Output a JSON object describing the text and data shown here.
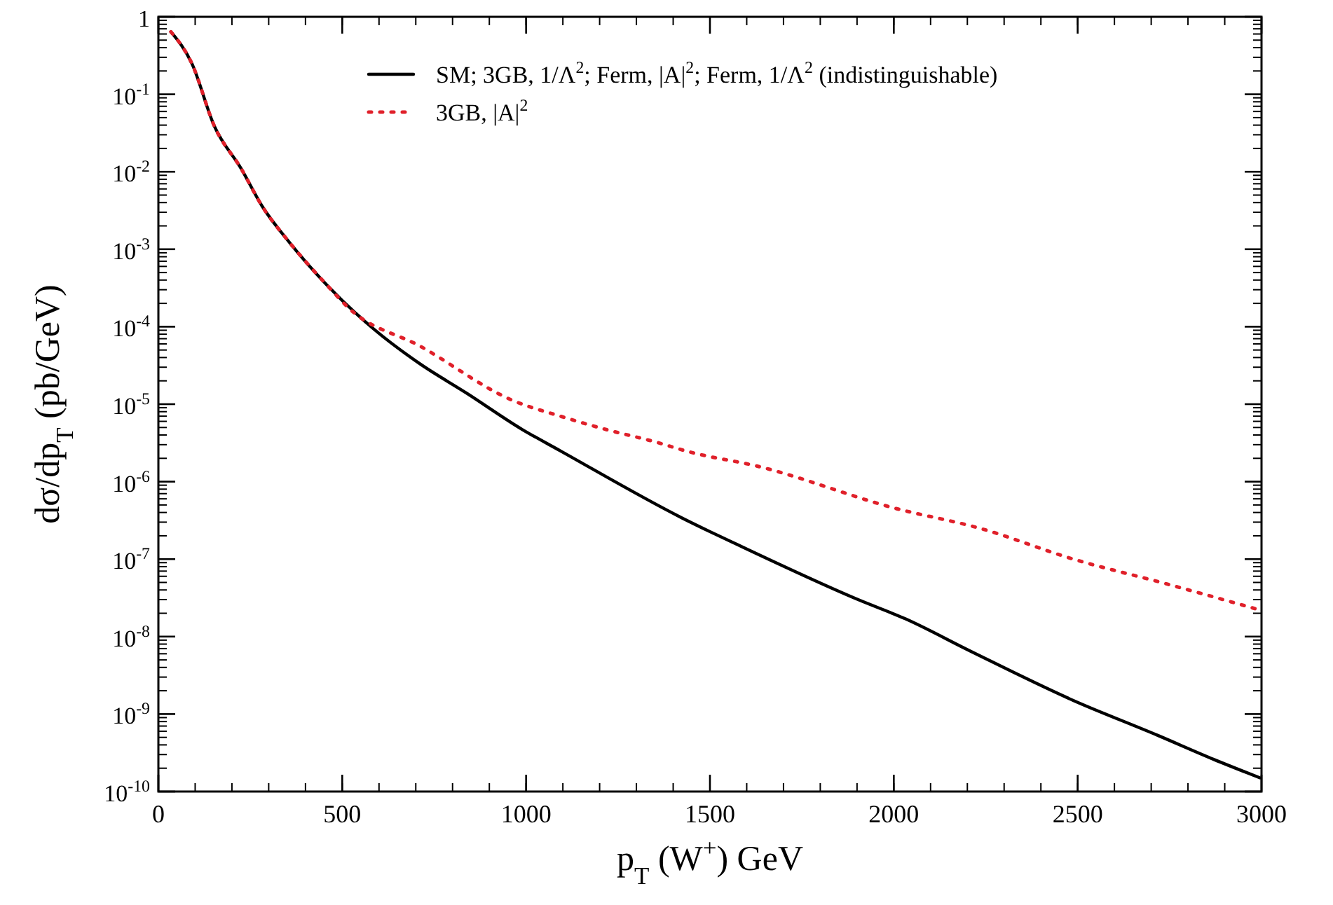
{
  "chart_data": {
    "type": "line",
    "xlabel": "p$_{T}$ (W$^{+}$) GeV",
    "ylabel": "dσ/dp$_{T}$ (pb/GeV)",
    "log": "y",
    "legend": "top right",
    "grid": false,
    "xlim": [
      0,
      3000
    ],
    "xticks": [
      0,
      500,
      1000,
      1500,
      2000,
      2500,
      3000
    ],
    "ylim": [
      1e-10,
      1
    ],
    "yticks": [
      {
        "value": 1e-10,
        "label": "10$^{-10}$"
      },
      {
        "value": 1e-09,
        "label": "10$^{-9}$"
      },
      {
        "value": 1e-08,
        "label": "10$^{-8}$"
      },
      {
        "value": 1e-07,
        "label": "10$^{-7}$"
      },
      {
        "value": 1e-06,
        "label": "10$^{-6}$"
      },
      {
        "value": 1e-05,
        "label": "10$^{-5}$"
      },
      {
        "value": 0.0001,
        "label": "10$^{-4}$"
      },
      {
        "value": 0.001,
        "label": "10$^{-3}$"
      },
      {
        "value": 0.01,
        "label": "10$^{-2}$"
      },
      {
        "value": 0.1,
        "label": "10$^{-1}$"
      },
      1
    ],
    "series": [
      {
        "name": "SM; 3GB, 1/Λ$^{2}$; Ferm, |A|$^{2}$; Ferm, 1/Λ$^{2}$ (indistinguishable)",
        "color": "#000000",
        "line_style": "solid",
        "x": [
          34,
          91,
          152,
          225,
          282,
          358,
          457,
          586,
          712,
          837,
          990,
          1093,
          1424,
          1600,
          1903,
          2031,
          2208,
          2488,
          2718,
          2870,
          2996
        ],
        "values": [
          0.64,
          0.25,
          0.039,
          0.011,
          0.0036,
          0.0012,
          0.00035,
          9.3e-05,
          3.3e-05,
          1.4e-05,
          4.7e-06,
          2.5e-06,
          3.4e-07,
          1.35e-07,
          3e-08,
          1.7e-08,
          6.5e-09,
          1.5e-09,
          5.3e-10,
          2.6e-10,
          1.5e-10
        ]
      },
      {
        "name": "3GB, |A|$^{2}$",
        "color": "#e0202a",
        "line_style": "dotted",
        "x": [
          34,
          91,
          152,
          225,
          282,
          358,
          457,
          520,
          712,
          967,
          1093,
          1218,
          1347,
          1447,
          1625,
          2006,
          2234,
          2488,
          2741,
          2996
        ],
        "values": [
          0.64,
          0.25,
          0.039,
          0.011,
          0.0036,
          0.0012,
          0.00035,
          0.00017,
          5.6e-05,
          1.1e-05,
          7e-06,
          4.7e-06,
          3.3e-06,
          2.4e-06,
          1.6e-06,
          4.5e-07,
          2.5e-07,
          1e-07,
          4.8e-08,
          2.2e-08
        ]
      }
    ]
  }
}
